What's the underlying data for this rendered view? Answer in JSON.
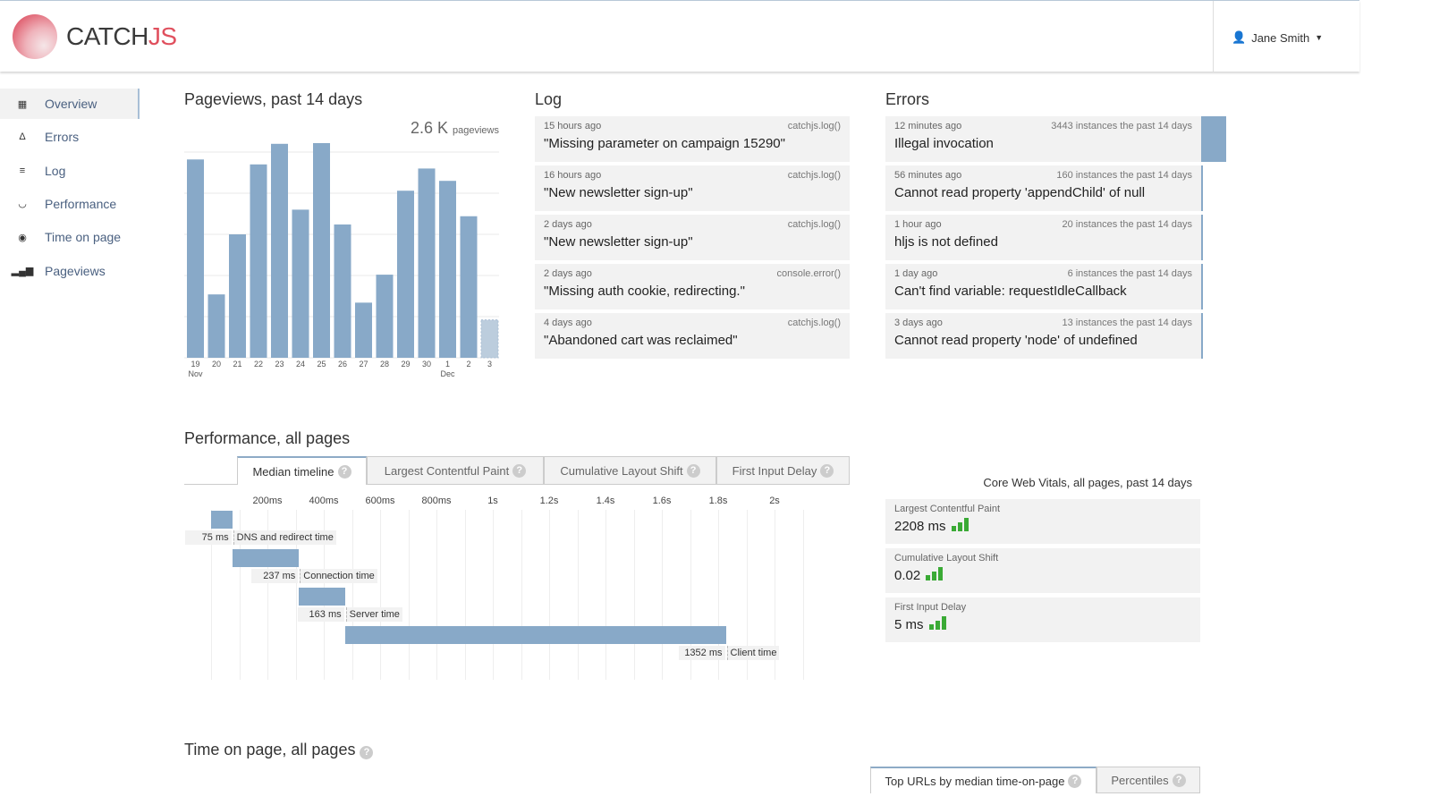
{
  "header": {
    "brand_main": "CATCH",
    "brand_accent": "JS",
    "user_name": "Jane Smith"
  },
  "sidebar": {
    "items": [
      {
        "label": "Overview",
        "icon": "grid-icon",
        "active": true
      },
      {
        "label": "Errors",
        "icon": "triangle-icon"
      },
      {
        "label": "Log",
        "icon": "menu-icon"
      },
      {
        "label": "Performance",
        "icon": "gauge-icon"
      },
      {
        "label": "Time on page",
        "icon": "eye-icon"
      },
      {
        "label": "Pageviews",
        "icon": "bar-chart-icon"
      }
    ]
  },
  "pageviews": {
    "title": "Pageviews, past 14 days",
    "total": "2.6 K",
    "total_unit": "pageviews"
  },
  "chart_data": {
    "type": "bar",
    "categories": [
      "19",
      "20",
      "21",
      "22",
      "23",
      "24",
      "25",
      "26",
      "27",
      "28",
      "29",
      "30",
      "1",
      "2",
      "3"
    ],
    "month_labels": [
      {
        "index": 0,
        "label": "Nov"
      },
      {
        "index": 12,
        "label": "Dec"
      }
    ],
    "values": [
      241,
      77,
      150,
      235,
      260,
      180,
      262,
      162,
      67,
      101,
      203,
      230,
      215,
      172,
      46
    ],
    "partial_last": true,
    "ylim": [
      0,
      260
    ],
    "grid": true,
    "color": "#88a9c8"
  },
  "log": {
    "title": "Log",
    "items": [
      {
        "time": "15 hours ago",
        "source": "catchjs.log()",
        "message": "\"Missing parameter on campaign 15290\""
      },
      {
        "time": "16 hours ago",
        "source": "catchjs.log()",
        "message": "\"New newsletter sign-up\""
      },
      {
        "time": "2 days ago",
        "source": "catchjs.log()",
        "message": "\"New newsletter sign-up\""
      },
      {
        "time": "2 days ago",
        "source": "console.error()",
        "message": "\"Missing auth cookie, redirecting.\""
      },
      {
        "time": "4 days ago",
        "source": "catchjs.log()",
        "message": "\"Abandoned cart was reclaimed\""
      }
    ]
  },
  "errors": {
    "title": "Errors",
    "items": [
      {
        "time": "12 minutes ago",
        "count_text": "3443 instances the past 14 days",
        "count": 3443,
        "message": "Illegal invocation"
      },
      {
        "time": "56 minutes ago",
        "count_text": "160 instances the past 14 days",
        "count": 160,
        "message": "Cannot read property 'appendChild' of null"
      },
      {
        "time": "1 hour ago",
        "count_text": "20 instances the past 14 days",
        "count": 20,
        "message": "hljs is not defined"
      },
      {
        "time": "1 day ago",
        "count_text": "6 instances the past 14 days",
        "count": 6,
        "message": "Can't find variable: requestIdleCallback"
      },
      {
        "time": "3 days ago",
        "count_text": "13 instances the past 14 days",
        "count": 13,
        "message": "Cannot read property 'node' of undefined"
      }
    ]
  },
  "performance": {
    "title": "Performance, all pages",
    "tabs": [
      "Median timeline",
      "Largest Contentful Paint",
      "Cumulative Layout Shift",
      "First Input Delay"
    ],
    "ticks": [
      "200ms",
      "400ms",
      "600ms",
      "800ms",
      "1s",
      "1.2s",
      "1.4s",
      "1.6s",
      "1.8s",
      "2s"
    ],
    "timeline": [
      {
        "value": "75 ms",
        "ms": 75,
        "name": "DNS and redirect time"
      },
      {
        "value": "237 ms",
        "ms": 237,
        "name": "Connection time"
      },
      {
        "value": "163 ms",
        "ms": 163,
        "name": "Server time"
      },
      {
        "value": "1352 ms",
        "ms": 1352,
        "name": "Client time"
      }
    ]
  },
  "cwv": {
    "title": "Core Web Vitals, all pages, past 14 days",
    "items": [
      {
        "name": "Largest Contentful Paint",
        "value": "2208 ms",
        "rating": "good"
      },
      {
        "name": "Cumulative Layout Shift",
        "value": "0.02",
        "rating": "good"
      },
      {
        "name": "First Input Delay",
        "value": "5 ms",
        "rating": "good"
      }
    ],
    "good_color": "#3aaa35"
  },
  "time_on_page": {
    "title": "Time on page, all pages",
    "tabs": [
      "Top URLs by median time-on-page",
      "Percentiles"
    ]
  }
}
